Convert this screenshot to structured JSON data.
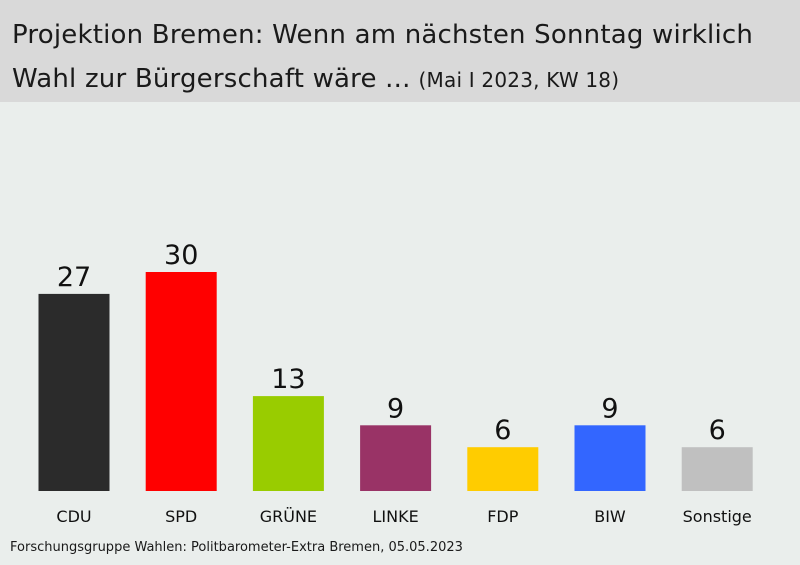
{
  "title": {
    "line1": "Projektion Bremen: Wenn am nächsten Sonntag wirklich",
    "line2": "Wahl zur Bürgerschaft wäre ...",
    "subtitle": "(Mai I 2023, KW 18)"
  },
  "source": "Forschungsgruppe Wahlen: Politbarometer-Extra Bremen, 05.05.2023",
  "chart_data": {
    "type": "bar",
    "categories": [
      "CDU",
      "SPD",
      "GRÜNE",
      "LINKE",
      "FDP",
      "BIW",
      "Sonstige"
    ],
    "values": [
      27,
      30,
      13,
      9,
      6,
      9,
      6
    ],
    "colors": [
      "#2b2b2b",
      "#ff0000",
      "#99cc00",
      "#993366",
      "#ffcc00",
      "#3366ff",
      "#c0c0c0"
    ],
    "title": "Projektion Bremen: Wenn am nächsten Sonntag wirklich Wahl zur Bürgerschaft wäre ...",
    "subtitle": "(Mai I 2023, KW 18)",
    "xlabel": "",
    "ylabel": "",
    "grid": false,
    "data_labels": true
  }
}
